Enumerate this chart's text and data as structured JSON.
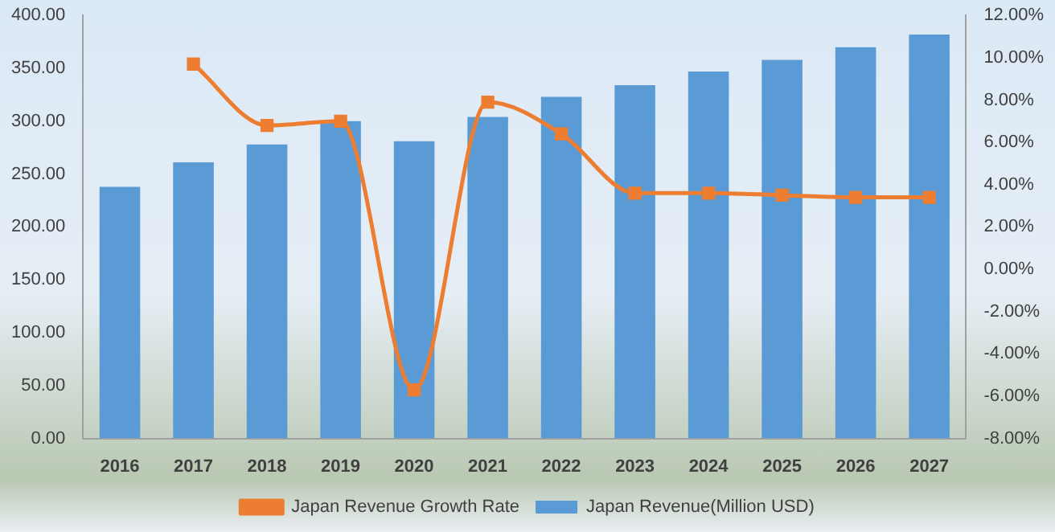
{
  "chart_data": {
    "type": "bar",
    "categories": [
      "2016",
      "2017",
      "2018",
      "2019",
      "2020",
      "2021",
      "2022",
      "2023",
      "2024",
      "2025",
      "2026",
      "2027"
    ],
    "series": [
      {
        "name": "Japan Revenue(Million USD)",
        "color": "#5b9bd5",
        "values": [
          238,
          261,
          278,
          300,
          281,
          304,
          323,
          334,
          347,
          358,
          370,
          382
        ]
      },
      {
        "name": "Japan Revenue Growth Rate",
        "type": "line",
        "axis": "y2",
        "color": "#ed7d31",
        "marker": "square",
        "values": [
          null,
          9.7,
          6.8,
          7.0,
          -5.7,
          7.9,
          6.4,
          3.6,
          3.6,
          3.5,
          3.4,
          3.4
        ]
      }
    ],
    "ylim": [
      0,
      400
    ],
    "yticks": [
      {
        "value": 0,
        "label": "0.00"
      },
      {
        "value": 50,
        "label": "50.00"
      },
      {
        "value": 100,
        "label": "100.00"
      },
      {
        "value": 150,
        "label": "150.00"
      },
      {
        "value": 200,
        "label": "200.00"
      },
      {
        "value": 250,
        "label": "250.00"
      },
      {
        "value": 300,
        "label": "300.00"
      },
      {
        "value": 350,
        "label": "350.00"
      },
      {
        "value": 400,
        "label": "400.00"
      }
    ],
    "y2lim": [
      -8,
      12
    ],
    "y2ticks": [
      {
        "value": -8,
        "label": "-8.00%"
      },
      {
        "value": -6,
        "label": "-6.00%"
      },
      {
        "value": -4,
        "label": "-4.00%"
      },
      {
        "value": -2,
        "label": "-2.00%"
      },
      {
        "value": 0,
        "label": "0.00%"
      },
      {
        "value": 2,
        "label": "2.00%"
      },
      {
        "value": 4,
        "label": "4.00%"
      },
      {
        "value": 6,
        "label": "6.00%"
      },
      {
        "value": 8,
        "label": "8.00%"
      },
      {
        "value": 10,
        "label": "10.00%"
      },
      {
        "value": 12,
        "label": "12.00%"
      }
    ],
    "legend": "bottom"
  }
}
